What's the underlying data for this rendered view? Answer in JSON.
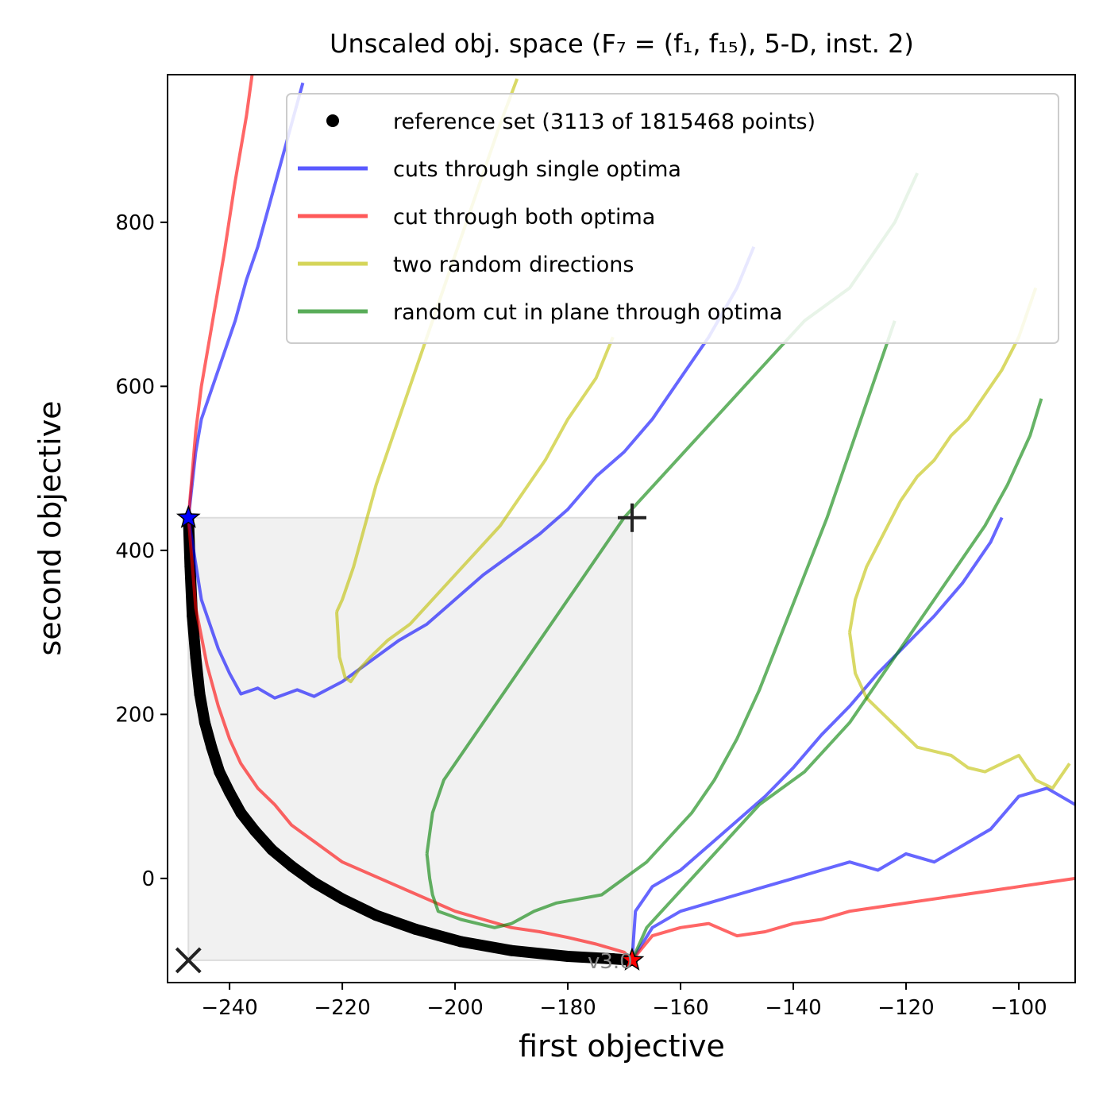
{
  "chart_data": {
    "type": "line",
    "title": "Unscaled obj. space (F₇ = (f₁, f₁₅), 5-D, inst. 2)",
    "xlabel": "first objective",
    "ylabel": "second objective",
    "xlim": [
      -251,
      -90
    ],
    "ylim": [
      -127,
      980
    ],
    "xticks": [
      -240,
      -220,
      -200,
      -180,
      -160,
      -140,
      -120,
      -100
    ],
    "yticks": [
      0,
      200,
      400,
      600,
      800
    ],
    "grid": false,
    "legend_position": "top-right",
    "version_label": "v3.0",
    "ideal_point": [
      -247.3,
      -99.8
    ],
    "nadir_point": [
      -168.6,
      439.8
    ],
    "optimum_1": [
      -247.3,
      439.8
    ],
    "optimum_2": [
      -168.6,
      -99.8
    ],
    "region_of_interest": {
      "x": [
        -247.3,
        -168.6
      ],
      "y": [
        -99.8,
        439.8
      ]
    },
    "legend": [
      {
        "label": "reference set (3113 of 1815468 points)",
        "color": "#000000",
        "marker": "dot"
      },
      {
        "label": "cuts through single optima",
        "color": "#0000ff",
        "marker": "line"
      },
      {
        "label": "cut through both optima",
        "color": "#ff0000",
        "marker": "line"
      },
      {
        "label": "two random directions",
        "color": "#bfbf00",
        "marker": "line"
      },
      {
        "label": "random cut in plane through optima",
        "color": "#008000",
        "marker": "line"
      }
    ],
    "series": [
      {
        "name": "reference set (3113 of 1815468 points)",
        "kind": "reference",
        "color": "#000000",
        "x": [
          -247.3,
          -247.0,
          -246.6,
          -246.0,
          -245.3,
          -244.4,
          -243.2,
          -241.8,
          -240.0,
          -238.0,
          -235.5,
          -232.5,
          -229.0,
          -225.0,
          -220.0,
          -214.0,
          -207.0,
          -199.0,
          -190.0,
          -180.0,
          -172.0,
          -168.6
        ],
        "y": [
          439.8,
          380,
          320,
          270,
          225,
          190,
          160,
          130,
          105,
          80,
          58,
          35,
          15,
          -5,
          -25,
          -45,
          -62,
          -77,
          -88,
          -95,
          -98,
          -99.8
        ]
      },
      {
        "name": "",
        "kind": "single",
        "color": "#0000ff",
        "x": [
          -247.3,
          -245.0,
          -242.0,
          -240.0,
          -238.0,
          -235.0,
          -232.0,
          -228.0,
          -225.0,
          -220.0,
          -215.0,
          -210.0,
          -205.0,
          -200.0,
          -195.0,
          -190.0,
          -185.0,
          -180.0,
          -175.0,
          -170.0,
          -165.0,
          -160.0,
          -155.0,
          -150.0,
          -147.0
        ],
        "y": [
          439.8,
          340,
          280,
          250,
          225,
          232,
          220,
          230,
          222,
          240,
          265,
          290,
          310,
          340,
          370,
          395,
          420,
          450,
          490,
          520,
          560,
          610,
          660,
          720,
          770
        ]
      },
      {
        "name": "",
        "kind": "single",
        "color": "#0000ff",
        "x": [
          -168.6,
          -168.0,
          -165.0,
          -160.0,
          -155.0,
          -150.0,
          -145.0,
          -140.0,
          -135.0,
          -130.0,
          -125.0,
          -120.0,
          -115.0,
          -110.0,
          -105.0,
          -103.0
        ],
        "y": [
          -99.8,
          -40,
          -10,
          10,
          40,
          70,
          100,
          135,
          175,
          210,
          250,
          285,
          320,
          360,
          410,
          440
        ]
      },
      {
        "name": "",
        "kind": "single",
        "color": "#0000ff",
        "x": [
          -247.3,
          -246.0,
          -245.0,
          -243.0,
          -241.0,
          -239.0,
          -237.0,
          -235.0,
          -233.0,
          -231.0,
          -229.0,
          -227.0
        ],
        "y": [
          439.8,
          520,
          560,
          600,
          640,
          680,
          730,
          770,
          820,
          870,
          920,
          970
        ]
      },
      {
        "name": "",
        "kind": "single",
        "color": "#0000ff",
        "x": [
          -168.6,
          -165.0,
          -160.0,
          -155.0,
          -150.0,
          -145.0,
          -140.0,
          -135.0,
          -130.0,
          -125.0,
          -120.0,
          -115.0,
          -110.0,
          -105.0,
          -100.0,
          -95.0,
          -90.0
        ],
        "y": [
          -99.8,
          -60,
          -40,
          -30,
          -20,
          -10,
          0,
          10,
          20,
          10,
          30,
          20,
          40,
          60,
          100,
          110,
          90
        ]
      },
      {
        "name": "",
        "kind": "both",
        "color": "#ff0000",
        "x": [
          -247.3,
          -246.0,
          -244.0,
          -242.0,
          -240.0,
          -238.0,
          -235.0,
          -232.0,
          -229.0,
          -225.0,
          -220.0,
          -215.0,
          -210.0,
          -205.0,
          -200.0,
          -195.0,
          -190.0,
          -185.0,
          -180.0,
          -175.0,
          -170.0,
          -168.6
        ],
        "y": [
          439.8,
          330,
          260,
          210,
          170,
          140,
          110,
          90,
          65,
          45,
          20,
          5,
          -10,
          -25,
          -40,
          -50,
          -60,
          -65,
          -72,
          -80,
          -90,
          -99.8
        ]
      },
      {
        "name": "",
        "kind": "both",
        "color": "#ff0000",
        "x": [
          -168.6,
          -165.0,
          -160.0,
          -155.0,
          -150.0,
          -145.0,
          -140.0,
          -135.0,
          -130.0,
          -125.0,
          -120.0,
          -115.0,
          -110.0,
          -105.0,
          -100.0,
          -95.0,
          -90.0
        ],
        "y": [
          -99.8,
          -70,
          -60,
          -55,
          -70,
          -65,
          -55,
          -50,
          -40,
          -35,
          -30,
          -25,
          -20,
          -15,
          -10,
          -5,
          0
        ]
      },
      {
        "name": "",
        "kind": "both",
        "color": "#ff0000",
        "x": [
          -247.3,
          -246.0,
          -245.0,
          -243.0,
          -241.0,
          -239.0,
          -237.0,
          -236.0
        ],
        "y": [
          439.8,
          545,
          600,
          680,
          760,
          850,
          930,
          980
        ]
      },
      {
        "name": "",
        "kind": "random",
        "color": "#bfbf00",
        "x": [
          -221.0,
          -220.5,
          -219.5,
          -218.5,
          -217.0,
          -215.0,
          -212.0,
          -208.0,
          -204.0,
          -200.0,
          -196.0,
          -192.0,
          -188.0,
          -184.0,
          -180.0,
          -175.0,
          -172.0
        ],
        "y": [
          325,
          270,
          245,
          240,
          255,
          270,
          290,
          310,
          340,
          370,
          400,
          430,
          470,
          510,
          560,
          610,
          660
        ]
      },
      {
        "name": "",
        "kind": "random",
        "color": "#bfbf00",
        "x": [
          -221.0,
          -220.0,
          -218.0,
          -216.0,
          -214.0,
          -212.0,
          -210.0,
          -207.0,
          -204.0,
          -201.0,
          -198.0,
          -195.0,
          -192.0,
          -189.0
        ],
        "y": [
          325,
          340,
          380,
          430,
          480,
          520,
          560,
          620,
          680,
          740,
          800,
          860,
          920,
          975
        ]
      },
      {
        "name": "",
        "kind": "random",
        "color": "#bfbf00",
        "x": [
          -130.0,
          -129.0,
          -127.0,
          -124.0,
          -121.0,
          -118.0,
          -115.0,
          -112.0,
          -109.0,
          -106.0,
          -103.0,
          -100.0,
          -97.0,
          -94.0,
          -91.0
        ],
        "y": [
          300,
          250,
          220,
          200,
          180,
          160,
          155,
          150,
          135,
          130,
          140,
          150,
          120,
          110,
          140
        ]
      },
      {
        "name": "",
        "kind": "random",
        "color": "#bfbf00",
        "x": [
          -130.0,
          -129.0,
          -127.0,
          -124.0,
          -121.0,
          -118.0,
          -115.0,
          -112.0,
          -109.0,
          -106.0,
          -103.0,
          -100.0,
          -97.0
        ],
        "y": [
          300,
          340,
          380,
          420,
          460,
          490,
          510,
          540,
          560,
          590,
          620,
          660,
          720
        ]
      },
      {
        "name": "",
        "kind": "plane",
        "color": "#008000",
        "x": [
          -205.0,
          -204.5,
          -204.0,
          -203.0,
          -201.0,
          -199.0,
          -196.0,
          -193.0,
          -190.0,
          -186.0,
          -182.0,
          -178.0,
          -174.0,
          -170.0,
          -166.0,
          -162.0,
          -158.0,
          -154.0,
          -150.0,
          -146.0,
          -142.0,
          -138.0,
          -134.0,
          -130.0,
          -126.0,
          -122.0
        ],
        "y": [
          30,
          0,
          -20,
          -40,
          -45,
          -50,
          -55,
          -60,
          -55,
          -40,
          -30,
          -25,
          -20,
          0,
          20,
          50,
          80,
          120,
          170,
          230,
          300,
          370,
          440,
          520,
          600,
          680
        ]
      },
      {
        "name": "",
        "kind": "plane",
        "color": "#008000",
        "x": [
          -205.0,
          -204.0,
          -202.0,
          -199.0,
          -196.0,
          -193.0,
          -190.0,
          -186.0,
          -182.0,
          -178.0,
          -174.0,
          -170.0,
          -166.0,
          -162.0,
          -158.0,
          -154.0,
          -150.0,
          -146.0,
          -142.0,
          -138.0,
          -134.0,
          -130.0,
          -126.0,
          -122.0,
          -118.0
        ],
        "y": [
          30,
          80,
          120,
          150,
          180,
          210,
          240,
          280,
          320,
          360,
          400,
          440,
          470,
          500,
          530,
          560,
          590,
          620,
          650,
          680,
          700,
          720,
          760,
          800,
          860
        ]
      },
      {
        "name": "",
        "kind": "plane",
        "color": "#008000",
        "x": [
          -168.6,
          -166.0,
          -162.0,
          -158.0,
          -154.0,
          -150.0,
          -146.0,
          -142.0,
          -138.0,
          -134.0,
          -130.0,
          -126.0,
          -122.0,
          -118.0,
          -114.0,
          -110.0,
          -106.0,
          -102.0,
          -98.0,
          -96.0
        ],
        "y": [
          -99.8,
          -60,
          -30,
          0,
          30,
          60,
          90,
          110,
          130,
          160,
          190,
          230,
          270,
          310,
          350,
          390,
          430,
          480,
          540,
          585
        ]
      }
    ]
  }
}
